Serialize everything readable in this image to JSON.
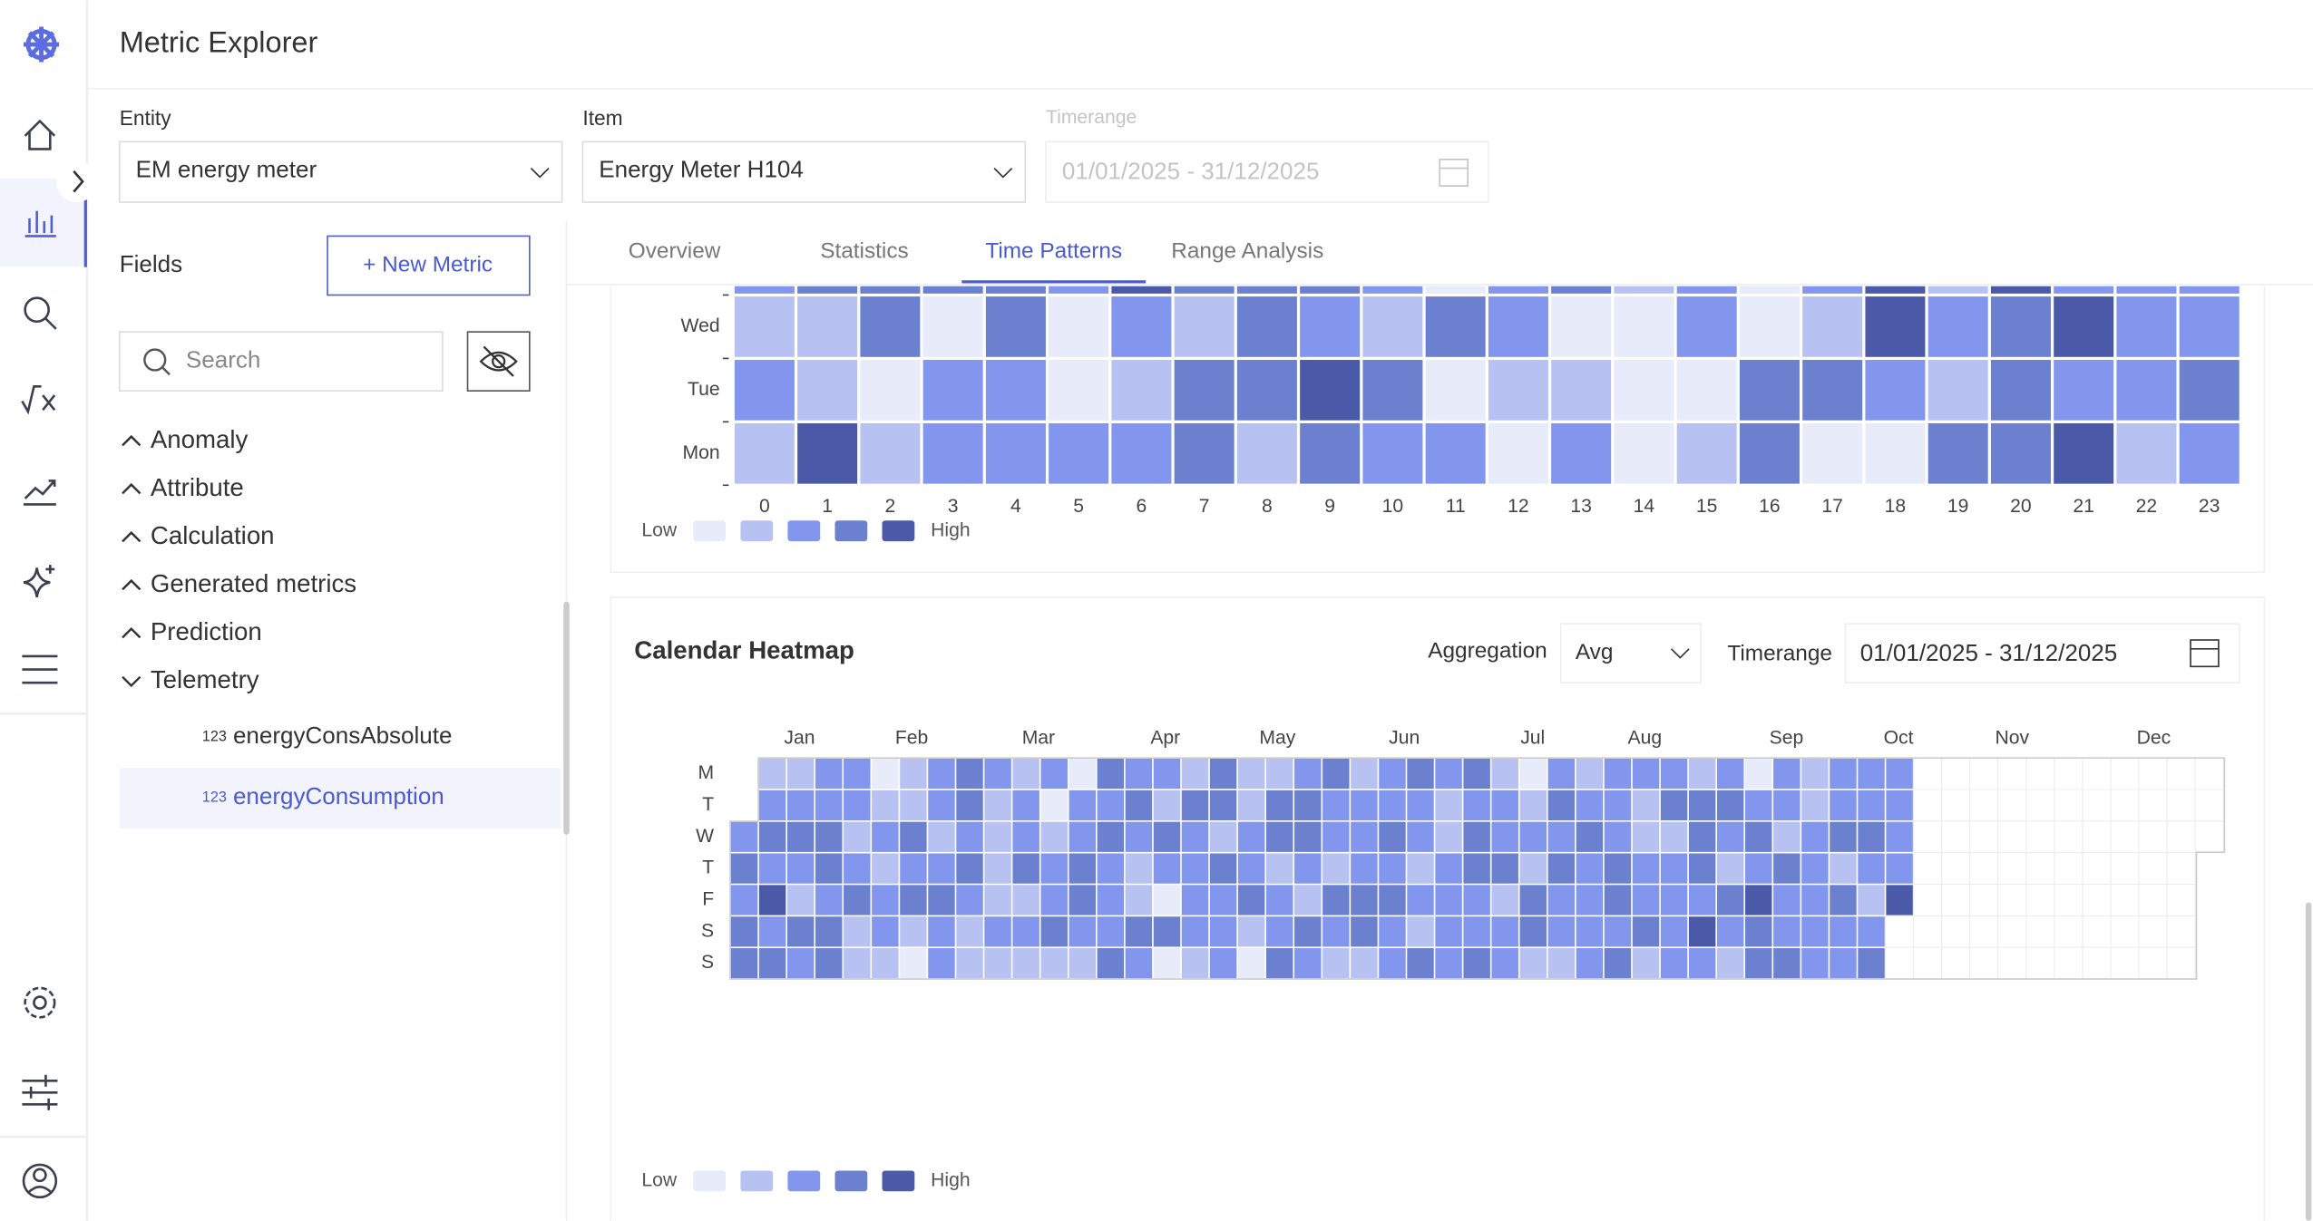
{
  "header": {
    "title": "Metric Explorer"
  },
  "filters": {
    "entity_label": "Entity",
    "entity_value": "EM energy meter",
    "item_label": "Item",
    "item_value": "Energy Meter H104",
    "timerange_label": "Timerange",
    "timerange_value": "01/01/2025 - 31/12/2025"
  },
  "fields": {
    "title": "Fields",
    "new_metric": "+ New Metric",
    "search_placeholder": "Search",
    "groups": [
      {
        "label": "Anomaly",
        "expanded": false
      },
      {
        "label": "Attribute",
        "expanded": false
      },
      {
        "label": "Calculation",
        "expanded": false
      },
      {
        "label": "Generated metrics",
        "expanded": false
      },
      {
        "label": "Prediction",
        "expanded": false
      },
      {
        "label": "Telemetry",
        "expanded": true
      }
    ],
    "items": [
      {
        "icon": "123",
        "label": "energyConsAbsolute",
        "selected": false
      },
      {
        "icon": "123",
        "label": "energyConsumption",
        "selected": true
      }
    ]
  },
  "tabs": [
    "Overview",
    "Statistics",
    "Time Patterns",
    "Range Analysis"
  ],
  "active_tab": 2,
  "colors": [
    "#e8ebfa",
    "#b8c2f2",
    "#8196ec",
    "#6b80cf",
    "#4a5aa8"
  ],
  "hour_heatmap": {
    "rows": [
      null,
      "Wed",
      "Tue",
      "Mon"
    ],
    "hours": [
      0,
      1,
      2,
      3,
      4,
      5,
      6,
      7,
      8,
      9,
      10,
      11,
      12,
      13,
      14,
      15,
      16,
      17,
      18,
      19,
      20,
      21,
      22,
      23
    ],
    "levels": [
      [
        3,
        4,
        4,
        4,
        4,
        3,
        5,
        4,
        4,
        4,
        3,
        1,
        3,
        4,
        2,
        3,
        1,
        3,
        5,
        2,
        5,
        3,
        3,
        3
      ],
      [
        2,
        2,
        4,
        1,
        4,
        1,
        3,
        2,
        4,
        3,
        2,
        4,
        3,
        1,
        1,
        3,
        1,
        2,
        5,
        3,
        4,
        5,
        3,
        3
      ],
      [
        3,
        2,
        1,
        3,
        3,
        1,
        2,
        4,
        4,
        5,
        4,
        1,
        2,
        2,
        1,
        1,
        4,
        4,
        3,
        2,
        4,
        3,
        3,
        4
      ],
      [
        2,
        5,
        2,
        3,
        3,
        3,
        3,
        4,
        2,
        4,
        3,
        3,
        1,
        3,
        1,
        2,
        4,
        1,
        1,
        4,
        4,
        5,
        2,
        3
      ]
    ],
    "legend": {
      "low": "Low",
      "high": "High",
      "levels": [
        1,
        2,
        3,
        4,
        5
      ]
    }
  },
  "calendar": {
    "title": "Calendar Heatmap",
    "aggregation_label": "Aggregation",
    "aggregation_value": "Avg",
    "timerange_label": "Timerange",
    "timerange_value": "01/01/2025 - 31/12/2025",
    "weekdays": [
      "M",
      "T",
      "W",
      "T",
      "F",
      "S",
      "S"
    ],
    "months": [
      "Jan",
      "Feb",
      "Mar",
      "Apr",
      "May",
      "Jun",
      "Jul",
      "Aug",
      "Sep",
      "Oct",
      "Nov",
      "Dec"
    ],
    "values": [
      3,
      4,
      3,
      4,
      4,
      2,
      3,
      4,
      3,
      5,
      3,
      4,
      2,
      3,
      4,
      3,
      2,
      4,
      3,
      3,
      3,
      4,
      4,
      3,
      4,
      4,
      3,
      3,
      2,
      3,
      4,
      2,
      2,
      1,
      2,
      3,
      2,
      3,
      3,
      2,
      2,
      2,
      4,
      3,
      4,
      2,
      1,
      3,
      3,
      2,
      3,
      4,
      3,
      3,
      4,
      4,
      3,
      4,
      3,
      2,
      2,
      3,
      2,
      2,
      2,
      2,
      3,
      2,
      2,
      3,
      3,
      4,
      2,
      3,
      2,
      3,
      1,
      2,
      3,
      3,
      4,
      2,
      1,
      3,
      3,
      4,
      4,
      3,
      2,
      4,
      3,
      4,
      3,
      3,
      3,
      4,
      3,
      4,
      3,
      2,
      2,
      4,
      3,
      3,
      2,
      4,
      3,
      1,
      4,
      1,
      2,
      4,
      3,
      3,
      3,
      3,
      2,
      4,
      4,
      2,
      4,
      3,
      3,
      3,
      2,
      2,
      3,
      3,
      4,
      2,
      1,
      2,
      4,
      4,
      2,
      3,
      3,
      4,
      3,
      4,
      4,
      3,
      2,
      4,
      3,
      4,
      3,
      3,
      2,
      4,
      3,
      2,
      2,
      3,
      3,
      3,
      4,
      4,
      2,
      3,
      3,
      4,
      3,
      4,
      3,
      3,
      4,
      3,
      3,
      2,
      3,
      2,
      4,
      3,
      2,
      2,
      3,
      3,
      3,
      3,
      4,
      3,
      4,
      4,
      3,
      3,
      4,
      2,
      3,
      3,
      4,
      2,
      3,
      3,
      1,
      2,
      3,
      2,
      4,
      4,
      2,
      3,
      4,
      3,
      4,
      3,
      3,
      2,
      2,
      3,
      4,
      3,
      3,
      3,
      3,
      3,
      3,
      3,
      4,
      4,
      3,
      4,
      3,
      2,
      2,
      3,
      3,
      4,
      2,
      3,
      4,
      2,
      3,
      3,
      3,
      3,
      2,
      4,
      4,
      4,
      3,
      5,
      3,
      3,
      4,
      3,
      2,
      4,
      3,
      2,
      1,
      3,
      4,
      3,
      5,
      4,
      4,
      3,
      3,
      2,
      4,
      3,
      3,
      4,
      2,
      2,
      3,
      3,
      3,
      3,
      3,
      3,
      3,
      4,
      2,
      4,
      3,
      3,
      3,
      3,
      4,
      3,
      2,
      3,
      4,
      3,
      3,
      3,
      3,
      5
    ],
    "legend": {
      "low": "Low",
      "high": "High",
      "levels": [
        1,
        2,
        3,
        4,
        5
      ]
    }
  }
}
